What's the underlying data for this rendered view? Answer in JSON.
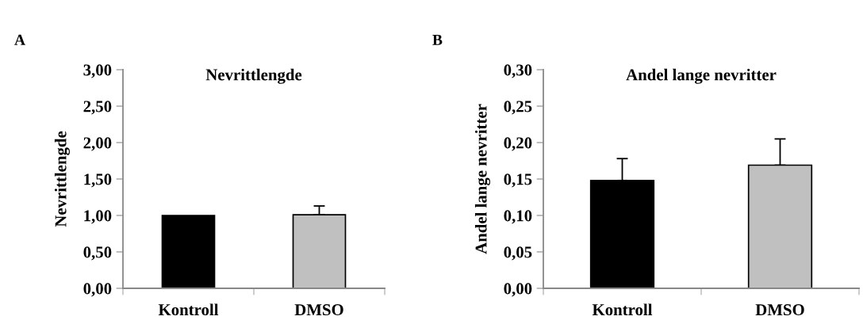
{
  "chart_data": [
    {
      "type": "bar",
      "title": "Nevrittlengde",
      "ylabel": "Nevrittlengde",
      "annotations": [
        "A"
      ],
      "categories": [
        "Kontroll",
        "DMSO"
      ],
      "values": [
        1.0,
        1.01
      ],
      "colors": [
        "#000000",
        "#c0c0c0"
      ],
      "errors": [
        null,
        [
          1.01,
          1.13
        ]
      ],
      "ylim": [
        0,
        3
      ],
      "yticks": [
        {
          "value": 0,
          "label": "0,00"
        },
        {
          "value": 0.5,
          "label": "0,50"
        },
        {
          "value": 1,
          "label": "1,00"
        },
        {
          "value": 1.5,
          "label": "1,50"
        },
        {
          "value": 2,
          "label": "2,00"
        },
        {
          "value": 2.5,
          "label": "2,50"
        },
        {
          "value": 3,
          "label": "3,00"
        }
      ],
      "grid": false,
      "legend": false
    },
    {
      "type": "bar",
      "title": "Andel lange nevritter",
      "ylabel": "Andel lange nevritter",
      "annotations": [
        "B"
      ],
      "categories": [
        "Kontroll",
        "DMSO"
      ],
      "values": [
        0.148,
        0.169
      ],
      "colors": [
        "#000000",
        "#c0c0c0"
      ],
      "errors": [
        [
          0.148,
          0.178
        ],
        [
          0.169,
          0.205
        ]
      ],
      "ylim": [
        0,
        0.3
      ],
      "yticks": [
        {
          "value": 0,
          "label": "0,00"
        },
        {
          "value": 0.05,
          "label": "0,05"
        },
        {
          "value": 0.1,
          "label": "0,10"
        },
        {
          "value": 0.15,
          "label": "0,15"
        },
        {
          "value": 0.2,
          "label": "0,20"
        },
        {
          "value": 0.25,
          "label": "0,25"
        },
        {
          "value": 0.3,
          "label": "0,30"
        }
      ],
      "grid": false,
      "legend": false
    }
  ]
}
